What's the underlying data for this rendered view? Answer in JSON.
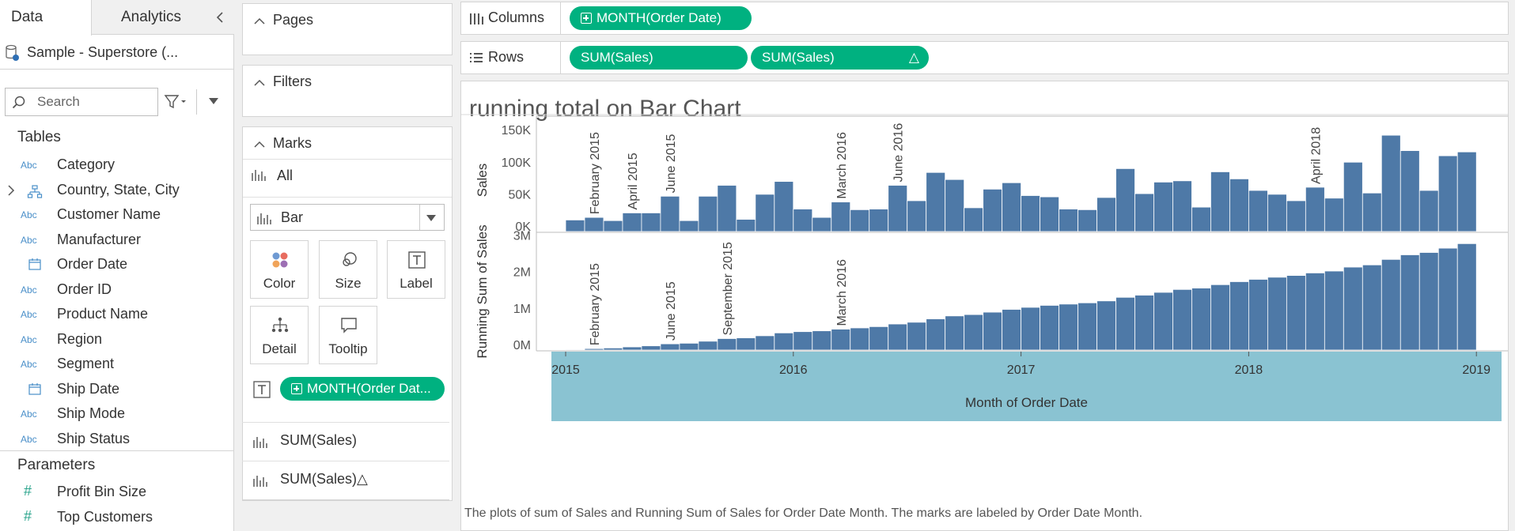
{
  "data_pane": {
    "tab_data": "Data",
    "tab_analytics": "Analytics",
    "datasource": "Sample - Superstore (...",
    "search_placeholder": "Search",
    "tables_heading": "Tables",
    "fields": [
      {
        "type": "Abc",
        "name": "Category"
      },
      {
        "type": "hierarchy",
        "name": "Country, State, City"
      },
      {
        "type": "Abc",
        "name": "Customer Name"
      },
      {
        "type": "Abc",
        "name": "Manufacturer"
      },
      {
        "type": "date",
        "name": "Order Date"
      },
      {
        "type": "Abc",
        "name": "Order ID"
      },
      {
        "type": "Abc",
        "name": "Product Name"
      },
      {
        "type": "Abc",
        "name": "Region"
      },
      {
        "type": "Abc",
        "name": "Segment"
      },
      {
        "type": "date",
        "name": "Ship Date"
      },
      {
        "type": "Abc",
        "name": "Ship Mode"
      },
      {
        "type": "Abc",
        "name": "Ship Status"
      }
    ],
    "parameters_heading": "Parameters",
    "parameters": [
      {
        "type": "#",
        "name": "Profit Bin Size"
      },
      {
        "type": "#",
        "name": "Top Customers"
      }
    ]
  },
  "cards": {
    "pages": "Pages",
    "filters": "Filters",
    "marks": "Marks",
    "marks_all": "All",
    "mark_type": "Bar",
    "buttons": {
      "color": "Color",
      "size": "Size",
      "label": "Label",
      "detail": "Detail",
      "tooltip": "Tooltip"
    },
    "label_pill": "MONTH(Order Dat...",
    "mark_fields": [
      "SUM(Sales)",
      "SUM(Sales)△"
    ]
  },
  "shelves": {
    "columns_label": "Columns",
    "rows_label": "Rows",
    "columns_pill": "MONTH(Order Date)",
    "rows_pills": [
      "SUM(Sales)",
      "SUM(Sales)"
    ],
    "rows_delta": "△"
  },
  "view": {
    "title": "running total on Bar Chart",
    "caption": "The plots of sum of Sales and Running Sum of Sales for Order Date Month.  The marks are labeled by Order Date Month."
  },
  "colors": {
    "bar": "#4e79a7",
    "axis_band": "#8ac3d2",
    "pill": "#00b180"
  },
  "chart_data": {
    "type": "bar",
    "xlabel": "Month of Order Date",
    "x_ticks": [
      "2015",
      "2016",
      "2017",
      "2018",
      "2019"
    ],
    "months": [
      "2015-01",
      "2015-02",
      "2015-03",
      "2015-04",
      "2015-05",
      "2015-06",
      "2015-07",
      "2015-08",
      "2015-09",
      "2015-10",
      "2015-11",
      "2015-12",
      "2016-01",
      "2016-02",
      "2016-03",
      "2016-04",
      "2016-05",
      "2016-06",
      "2016-07",
      "2016-08",
      "2016-09",
      "2016-10",
      "2016-11",
      "2016-12",
      "2017-01",
      "2017-02",
      "2017-03",
      "2017-04",
      "2017-05",
      "2017-06",
      "2017-07",
      "2017-08",
      "2017-09",
      "2017-10",
      "2017-11",
      "2017-12",
      "2018-01",
      "2018-02",
      "2018-03",
      "2018-04",
      "2018-05",
      "2018-06",
      "2018-07",
      "2018-08",
      "2018-09",
      "2018-10",
      "2018-11",
      "2018-12"
    ],
    "series": [
      {
        "name": "Sales",
        "ylabel": "Sales",
        "y_ticks": [
          "0K",
          "50K",
          "100K",
          "150K"
        ],
        "ylim": [
          0,
          160000
        ],
        "values": [
          18000,
          22000,
          17000,
          29000,
          29000,
          55000,
          17000,
          55000,
          72000,
          19000,
          58000,
          78000,
          35000,
          22000,
          46000,
          34000,
          35000,
          72000,
          48000,
          92000,
          81000,
          37000,
          66000,
          76000,
          56000,
          54000,
          35000,
          34000,
          53000,
          98000,
          59000,
          77000,
          79000,
          38000,
          93000,
          82000,
          64000,
          58000,
          48000,
          69000,
          52000,
          108000,
          60000,
          150000,
          126000,
          64000,
          118000,
          124000
        ],
        "labels": {
          "2015-02": "February 2015",
          "2015-04": "April 2015",
          "2015-06": "June 2015",
          "2016-03": "March 2016",
          "2016-06": "June 2016",
          "2018-04": "April 2018"
        }
      },
      {
        "name": "Running Sum of Sales",
        "ylabel": "Running Sum of Sales",
        "y_ticks": [
          "0M",
          "1M",
          "2M",
          "3M"
        ],
        "ylim": [
          0,
          3200000
        ],
        "labels": {
          "2015-02": "February 2015",
          "2015-06": "June 2015",
          "2015-09": "September 2015",
          "2016-03": "March 2016"
        }
      }
    ]
  }
}
